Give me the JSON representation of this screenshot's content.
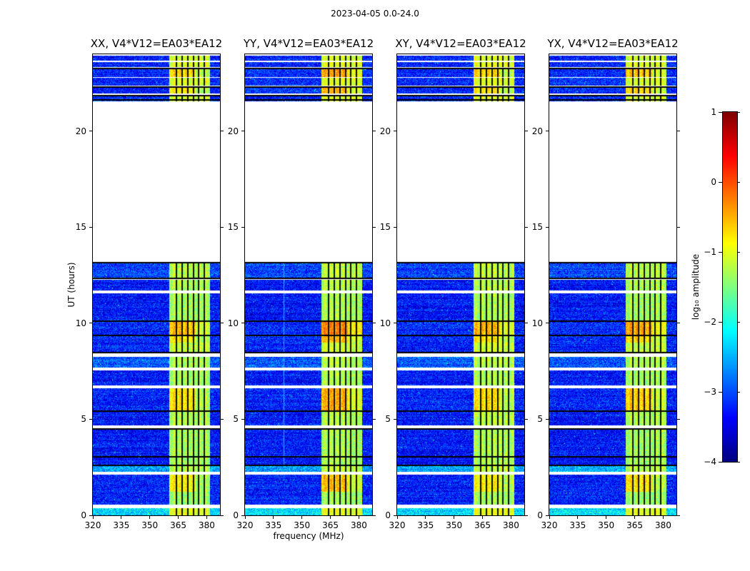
{
  "chart_data": {
    "type": "heatmap",
    "title": "2023-04-05 0.0-24.0",
    "xlabel": "frequency (MHz)",
    "ylabel": "UT (hours)",
    "colormap": "jet",
    "panels": [
      {
        "id": "xx",
        "title": "XX, V4*V12=EA03*EA12",
        "seed": 3,
        "gain": 0
      },
      {
        "id": "yy",
        "title": "YY, V4*V12=EA03*EA12",
        "seed": 17,
        "gain": 0.25,
        "faint_vline_mhz": 340.5
      },
      {
        "id": "xy",
        "title": "XY, V4*V12=EA03*EA12",
        "seed": 31,
        "gain": 0
      },
      {
        "id": "yx",
        "title": "YX, V4*V12=EA03*EA12",
        "seed": 59,
        "gain": 0.12
      }
    ],
    "x_range_mhz": [
      320,
      387
    ],
    "y_range_hours": [
      0,
      24
    ],
    "x_tick_values": [
      320,
      335,
      350,
      365,
      380
    ],
    "x_tick_labels": [
      "320",
      "335",
      "350",
      "365",
      "380"
    ],
    "y_tick_values": [
      0,
      5,
      10,
      15,
      20
    ],
    "y_tick_labels": [
      "0",
      "5",
      "10",
      "15",
      "20"
    ],
    "colorbar": {
      "label": "log₁₀ amplitude",
      "tick_values": [
        1,
        0,
        -1,
        -2,
        -3,
        -4
      ],
      "tick_labels": [
        "1",
        "0",
        "−1",
        "−2",
        "−3",
        "−4"
      ],
      "value_range": [
        -4,
        1
      ]
    },
    "band_mhz": [
      360.5,
      382.0
    ],
    "rfi_line_mhz": [
      364,
      367,
      370,
      373,
      376,
      379
    ],
    "hline_hours": [
      2.6,
      3.05,
      4.5,
      5.42,
      8.45,
      9.37,
      10.12,
      12.32,
      13.15,
      21.62,
      21.87,
      22.3,
      23.27
    ],
    "time_segments": [
      {
        "t0": 0.0,
        "t1": 0.35,
        "bg": -2.3,
        "band": -1.0
      },
      {
        "t0": 0.55,
        "t1": 1.2,
        "bg": -3.25,
        "band": -1.35
      },
      {
        "t0": 1.2,
        "t1": 2.1,
        "bg": -3.25,
        "band": -0.85
      },
      {
        "t0": 2.25,
        "t1": 2.57,
        "bg": -2.55,
        "band": -1.2
      },
      {
        "t0": 2.57,
        "t1": 4.52,
        "bg": -3.3,
        "band": -1.3
      },
      {
        "t0": 4.68,
        "t1": 5.41,
        "bg": -3.3,
        "band": -1.25
      },
      {
        "t0": 5.41,
        "t1": 6.6,
        "bg": -3.25,
        "band": -0.75
      },
      {
        "t0": 6.75,
        "t1": 7.55,
        "bg": -3.3,
        "band": -1.3
      },
      {
        "t0": 7.7,
        "t1": 8.25,
        "bg": -2.95,
        "band": -1.25
      },
      {
        "t0": 8.42,
        "t1": 9.0,
        "bg": -3.25,
        "band": -1.15
      },
      {
        "t0": 9.0,
        "t1": 9.37,
        "bg": -3.2,
        "band": -0.8
      },
      {
        "t0": 9.37,
        "t1": 10.11,
        "bg": -3.2,
        "band": -0.55
      },
      {
        "t0": 10.11,
        "t1": 11.55,
        "bg": -3.3,
        "band": -1.3
      },
      {
        "t0": 11.7,
        "t1": 12.25,
        "bg": -3.3,
        "band": -1.25
      },
      {
        "t0": 12.3,
        "t1": 13.18,
        "bg": -3.05,
        "band": -1.2
      },
      {
        "t0": 21.58,
        "t1": 21.9,
        "bg": -3.2,
        "band": -1.05
      },
      {
        "t0": 21.97,
        "t1": 22.33,
        "bg": -3.2,
        "band": -0.8
      },
      {
        "t0": 22.4,
        "t1": 22.78,
        "bg": -3.2,
        "band": -1.05
      },
      {
        "t0": 22.84,
        "t1": 23.3,
        "bg": -3.2,
        "band": -0.7
      },
      {
        "t0": 23.36,
        "t1": 23.62,
        "bg": -3.2,
        "band": -1.0
      },
      {
        "t0": 23.68,
        "t1": 23.95,
        "bg": -3.25,
        "band": -1.1
      }
    ]
  }
}
